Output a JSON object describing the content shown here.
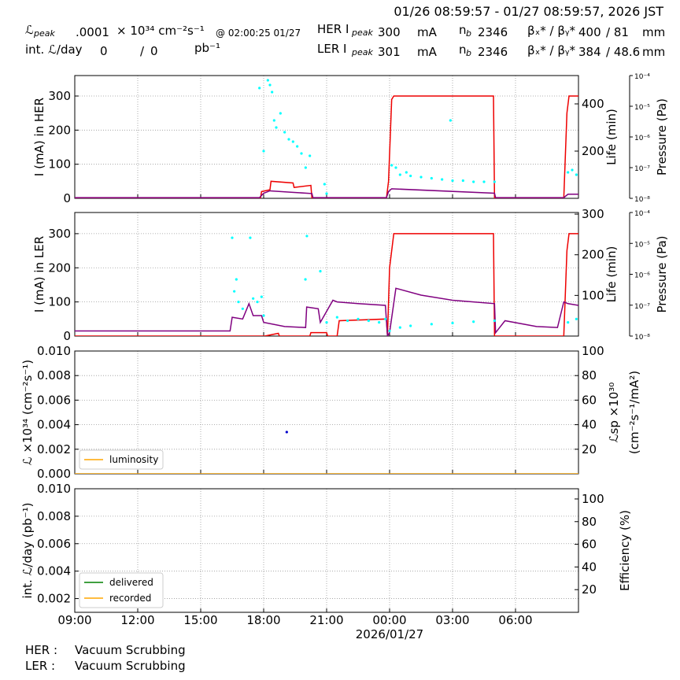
{
  "header": {
    "range": "01/26 08:59:57 - 01/27 08:59:57, 2026 JST",
    "lum_peak": {
      "symbol": "ℒ",
      "sub": "peak",
      "value": ".0001",
      "unit": "× 10³⁴ cm⁻²s⁻¹",
      "time": "@ 02:00:25 01/27"
    },
    "int_lum": {
      "label": "int. ℒ/day",
      "value": "0",
      "sep": "/",
      "value2": "0",
      "unit": "pb⁻¹"
    },
    "her": {
      "label": "HER I",
      "sub": "peak",
      "current": "300",
      "unit": "mA",
      "nb_label": "n",
      "nb_sub": "b",
      "nb": "2346",
      "beta_label": "βₓ* / βᵧ*",
      "beta_x": "400",
      "beta_y": "/ 81",
      "beta_unit": "mm"
    },
    "ler": {
      "label": "LER I",
      "sub": "peak",
      "current": "301",
      "unit": "mA",
      "nb_label": "n",
      "nb_sub": "b",
      "nb": "2346",
      "beta_label": "βₓ* / βᵧ*",
      "beta_x": "384",
      "beta_y": "/ 48.6",
      "beta_unit": "mm"
    }
  },
  "chart_data": [
    {
      "type": "line",
      "ylabel": "I (mA) in HER",
      "y2label": "Life (min)",
      "y3label": "Pressure (Pa)",
      "grid": true,
      "xlim": [
        0,
        24
      ],
      "xticks": [
        0,
        3,
        6,
        9,
        12,
        15,
        18,
        21
      ],
      "ylim": [
        0,
        360
      ],
      "yticks": [
        0,
        100,
        200,
        300
      ],
      "y2lim": [
        0,
        520
      ],
      "y2ticks": [
        200,
        400
      ],
      "y3lim": [
        1e-08,
        0.0001
      ],
      "y3log": true,
      "y3ticks": [
        {
          "value": 1e-08,
          "label": "10⁻⁸"
        },
        {
          "value": 1e-07,
          "label": "10⁻⁷"
        },
        {
          "value": 1e-06,
          "label": "10⁻⁶"
        },
        {
          "value": 1e-05,
          "label": "10⁻⁵"
        },
        {
          "value": 0.0001,
          "label": "10⁻⁴"
        }
      ],
      "series": [
        {
          "color": "#ee0000",
          "x": [
            0,
            8.85,
            8.9,
            9.3,
            9.35,
            10.4,
            10.45,
            11.25,
            11.3,
            14.85,
            14.95,
            15.1,
            15.2,
            19.95,
            20.0,
            23.3,
            23.45,
            23.55,
            24
          ],
          "values": [
            0,
            0,
            20,
            25,
            50,
            45,
            32,
            38,
            0,
            0,
            50,
            290,
            300,
            300,
            0,
            0,
            250,
            300,
            300
          ]
        },
        {
          "color": "#800080",
          "x": [
            0,
            8.8,
            9.0,
            9.3,
            10.3,
            11.3,
            11.35,
            14.85,
            14.95,
            15.1,
            20.0,
            20.05,
            23.3,
            23.5,
            24
          ],
          "values": [
            2,
            2,
            15,
            22,
            18,
            14,
            2,
            2,
            20,
            28,
            15,
            2,
            2,
            12,
            12
          ]
        },
        {
          "color": "#00ffff",
          "type": "scatter",
          "axis": "y2",
          "x": [
            8.8,
            9.0,
            9.2,
            9.3,
            9.4,
            9.5,
            9.6,
            9.8,
            10.0,
            10.2,
            10.4,
            10.6,
            10.8,
            11.0,
            11.2,
            11.9,
            12.0,
            15.1,
            15.3,
            15.5,
            15.8,
            16.0,
            16.5,
            17.0,
            17.5,
            17.9,
            18.0,
            18.5,
            19.0,
            19.5,
            20.0,
            23.5,
            23.7,
            23.9
          ],
          "values": [
            467,
            200,
            500,
            480,
            450,
            330,
            300,
            360,
            280,
            250,
            240,
            220,
            190,
            130,
            180,
            60,
            20,
            140,
            130,
            100,
            110,
            95,
            90,
            85,
            80,
            330,
            75,
            75,
            70,
            70,
            70,
            110,
            120,
            100
          ]
        }
      ]
    },
    {
      "type": "line",
      "ylabel": "I (mA) in LER",
      "y2label": "Life (min)",
      "y3label": "Pressure (Pa)",
      "grid": true,
      "xlim": [
        0,
        24
      ],
      "xticks": [
        0,
        3,
        6,
        9,
        12,
        15,
        18,
        21
      ],
      "ylim": [
        0,
        362
      ],
      "yticks": [
        0,
        100,
        200,
        300
      ],
      "y2lim": [
        0,
        304
      ],
      "y2ticks": [
        100,
        200,
        300
      ],
      "y3lim": [
        1e-08,
        0.0001
      ],
      "y3log": true,
      "y3ticks": [
        {
          "value": 1e-08,
          "label": "10⁻⁸"
        },
        {
          "value": 1e-07,
          "label": "10⁻⁷"
        },
        {
          "value": 1e-06,
          "label": "10⁻⁶"
        },
        {
          "value": 1e-05,
          "label": "10⁻⁵"
        },
        {
          "value": 0.0001,
          "label": "10⁻⁴"
        }
      ],
      "series": [
        {
          "color": "#ee0000",
          "x": [
            0,
            9.0,
            9.05,
            9.7,
            9.75,
            11.2,
            11.25,
            12.0,
            12.05,
            12.5,
            12.6,
            14.85,
            14.9,
            15.0,
            15.2,
            19.95,
            20.0,
            23.3,
            23.45,
            23.55,
            24
          ],
          "values": [
            0,
            0,
            0,
            8,
            0,
            0,
            10,
            10,
            0,
            0,
            45,
            50,
            0,
            200,
            300,
            300,
            0,
            0,
            250,
            300,
            300
          ]
        },
        {
          "color": "#800080",
          "x": [
            0,
            7.4,
            7.5,
            8.0,
            8.3,
            8.5,
            8.9,
            9.0,
            10.0,
            11.0,
            11.05,
            11.6,
            11.7,
            12.3,
            12.5,
            13.5,
            14.8,
            14.9,
            15.0,
            15.3,
            16.5,
            18.0,
            20.0,
            20.05,
            20.5,
            22.0,
            23.0,
            23.3,
            23.5,
            24
          ],
          "values": [
            15,
            15,
            55,
            50,
            95,
            60,
            60,
            40,
            28,
            25,
            85,
            80,
            40,
            105,
            100,
            95,
            90,
            0,
            10,
            140,
            120,
            105,
            95,
            10,
            45,
            28,
            25,
            100,
            95,
            90
          ]
        },
        {
          "color": "#00ffff",
          "type": "scatter",
          "x": [
            7.5,
            7.6,
            7.7,
            7.8,
            8.0,
            8.36,
            8.5,
            8.7,
            8.9,
            9.0,
            10.99,
            11.06,
            11.7,
            12.0,
            12.5,
            13.0,
            13.5,
            14.0,
            14.5,
            14.8,
            15.0,
            15.5,
            16.0,
            17.0,
            18.0,
            19.0,
            20.0,
            23.5,
            23.9
          ],
          "values": [
            288,
            131,
            166,
            100,
            80,
            288,
            110,
            100,
            115,
            60,
            166,
            293,
            190,
            40,
            55,
            45,
            50,
            45,
            40,
            50,
            15,
            25,
            30,
            35,
            38,
            42,
            45,
            40,
            50
          ]
        }
      ]
    },
    {
      "type": "line",
      "ylabel": "ℒ ×10³⁴ (cm⁻²s⁻¹)",
      "y2label": "ℒsp ×10³⁰",
      "y2label2": "(cm⁻²s⁻¹/mA²)",
      "grid": true,
      "legend": "lower left",
      "xlim": [
        0,
        24
      ],
      "xticks": [
        0,
        3,
        6,
        9,
        12,
        15,
        18,
        21
      ],
      "ylim": [
        0,
        0.01
      ],
      "yticks": [
        {
          "value": 0,
          "label": "0.000"
        },
        0.002,
        0.004,
        0.006,
        0.008,
        {
          "value": 0.01,
          "label": "0.010"
        }
      ],
      "y2lim": [
        0,
        100
      ],
      "y2ticks": [
        20,
        40,
        60,
        80,
        100
      ],
      "series": [
        {
          "name": "luminosity",
          "color": "#ffa500",
          "x": [
            0,
            24
          ],
          "values": [
            0,
            0
          ]
        },
        {
          "color": "#0000cc",
          "type": "scatter",
          "x": [
            10.1
          ],
          "values": [
            0.0034
          ]
        }
      ]
    },
    {
      "type": "line",
      "ylabel": "int. ℒ/day (pb⁻¹)",
      "y2label": "Efficiency (%)",
      "grid": true,
      "legend": "lower left",
      "xlim": [
        0,
        24
      ],
      "xsublabel": "2026/01/27",
      "xticks": [
        {
          "value": 0,
          "label": "09:00"
        },
        {
          "value": 3,
          "label": "12:00"
        },
        {
          "value": 6,
          "label": "15:00"
        },
        {
          "value": 9,
          "label": "18:00"
        },
        {
          "value": 12,
          "label": "21:00"
        },
        {
          "value": 15,
          "label": "00:00"
        },
        {
          "value": 18,
          "label": "03:00"
        },
        {
          "value": 21,
          "label": "06:00"
        }
      ],
      "ylim": [
        0.001,
        0.01
      ],
      "yticks": [
        0.002,
        0.004,
        0.006,
        0.008,
        {
          "value": 0.01,
          "label": "0.010"
        }
      ],
      "y2lim": [
        0,
        109
      ],
      "y2ticks": [
        20,
        40,
        60,
        80,
        100
      ],
      "series": [
        {
          "name": "delivered",
          "color": "#008000",
          "x": [],
          "values": []
        },
        {
          "name": "recorded",
          "color": "#ffa500",
          "x": [],
          "values": []
        }
      ]
    }
  ],
  "status": [
    {
      "ring": "HER :",
      "state": "Vacuum Scrubbing"
    },
    {
      "ring": "LER :",
      "state": "Vacuum Scrubbing"
    }
  ]
}
